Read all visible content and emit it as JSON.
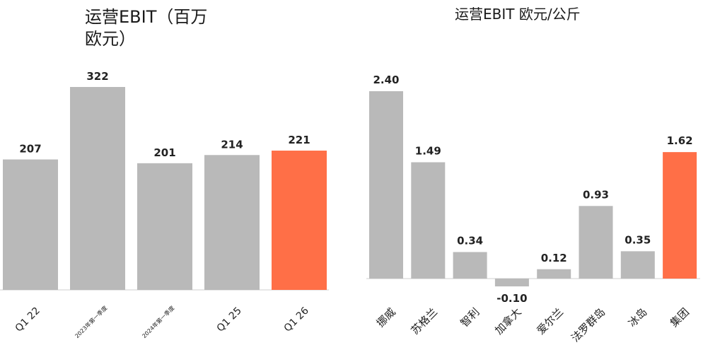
{
  "chart_data": [
    {
      "type": "bar",
      "title_line1": "运营EBIT（百万",
      "title_line2": "欧元）",
      "categories": [
        "Q1 22",
        "2023年第一季度",
        "2024年第一季度",
        "Q1 25",
        "Q1 26"
      ],
      "values": [
        207,
        322,
        201,
        214,
        221
      ],
      "value_labels": [
        "207",
        "322",
        "201",
        "214",
        "221"
      ],
      "colors": [
        "#b9b9b9",
        "#b9b9b9",
        "#b9b9b9",
        "#b9b9b9",
        "#ff6f47"
      ],
      "ylim": [
        0,
        322
      ]
    },
    {
      "type": "bar",
      "title": "运营EBIT 欧元/公斤",
      "categories": [
        "挪威",
        "苏格兰",
        "智利",
        "加拿大",
        "爱尔兰",
        "法罗群岛",
        "冰岛",
        "集团"
      ],
      "values": [
        2.4,
        1.49,
        0.34,
        -0.1,
        0.12,
        0.93,
        0.35,
        1.62
      ],
      "value_labels": [
        "2.40",
        "1.49",
        "0.34",
        "-0.10",
        "0.12",
        "0.93",
        "0.35",
        "1.62"
      ],
      "colors": [
        "#b9b9b9",
        "#b9b9b9",
        "#b9b9b9",
        "#b9b9b9",
        "#b9b9b9",
        "#b9b9b9",
        "#b9b9b9",
        "#ff6f47"
      ],
      "ylim": [
        -0.1,
        2.4
      ]
    }
  ]
}
